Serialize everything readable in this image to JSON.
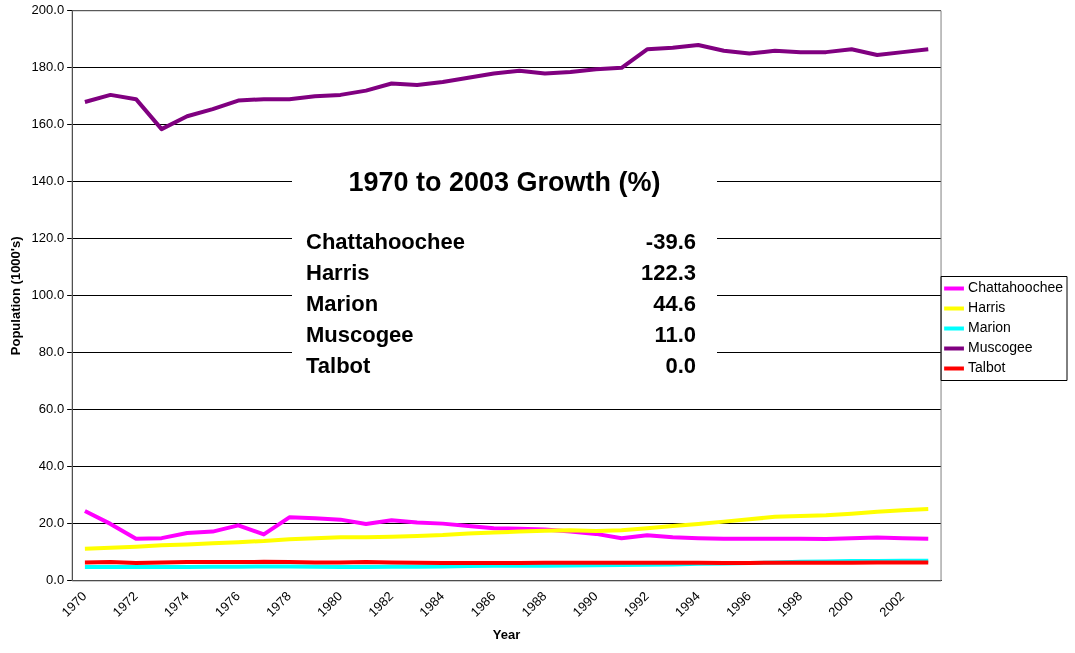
{
  "chart_data": {
    "type": "line",
    "xlabel": "Year",
    "ylabel": "Population (1000's)",
    "categories": [
      "1970",
      null,
      "1972",
      null,
      "1974",
      null,
      "1976",
      null,
      "1978",
      null,
      "1980",
      null,
      "1982",
      null,
      "1984",
      null,
      "1986",
      null,
      "1988",
      null,
      "1990",
      null,
      "1992",
      null,
      "1994",
      null,
      "1996",
      null,
      "1998",
      null,
      "2000",
      null,
      "2002",
      null
    ],
    "series": [
      {
        "name": "Chattahoochee",
        "color": "#ff00ff",
        "values": [
          24.5,
          20,
          14.8,
          15,
          16.8,
          17.3,
          19.5,
          16.3,
          22.3,
          22,
          21.5,
          20,
          21.3,
          20.5,
          20.1,
          19.3,
          18.5,
          18.3,
          18,
          17.3,
          16.5,
          15,
          16,
          15.3,
          15,
          14.8,
          14.8,
          14.8,
          14.8,
          14.7,
          15,
          15.2,
          15,
          14.8
        ]
      },
      {
        "name": "Harris",
        "color": "#ffff00",
        "values": [
          11.3,
          11.6,
          12,
          12.5,
          12.8,
          13.2,
          13.6,
          14,
          14.6,
          15,
          15.3,
          15.3,
          15.5,
          15.8,
          16.1,
          16.6,
          17,
          17.3,
          17.6,
          17.8,
          17.5,
          17.8,
          18.5,
          19.3,
          20,
          20.8,
          21.6,
          22.5,
          22.8,
          23,
          23.6,
          24.3,
          24.8,
          25.2
        ]
      },
      {
        "name": "Marion",
        "color": "#00ffff",
        "values": [
          4.9,
          4.9,
          4.9,
          4.9,
          4.9,
          5,
          5,
          5.1,
          5.1,
          5,
          4.9,
          4.9,
          5,
          5,
          5.1,
          5.2,
          5.3,
          5.3,
          5.3,
          5.4,
          5.5,
          5.6,
          5.7,
          5.8,
          6,
          6.1,
          6.3,
          6.5,
          6.7,
          6.8,
          7,
          7,
          7.1,
          7.1
        ]
      },
      {
        "name": "Muscogee",
        "color": "#800080",
        "values": [
          168,
          170.5,
          169,
          158.5,
          163,
          165.5,
          168.5,
          169,
          169,
          170,
          170.5,
          172,
          174.5,
          174,
          175,
          176.5,
          178,
          179,
          178,
          178.5,
          179.5,
          180,
          186.5,
          187,
          188,
          186,
          185,
          186,
          185.5,
          185.5,
          186.5,
          184.5,
          185.5,
          186.5
        ]
      },
      {
        "name": "Talbot",
        "color": "#ff0000",
        "values": [
          6.5,
          6.6,
          6.3,
          6.5,
          6.6,
          6.6,
          6.6,
          6.7,
          6.6,
          6.5,
          6.5,
          6.6,
          6.5,
          6.4,
          6.3,
          6.3,
          6.3,
          6.3,
          6.4,
          6.4,
          6.4,
          6.4,
          6.4,
          6.4,
          6.4,
          6.3,
          6.3,
          6.4,
          6.4,
          6.4,
          6.4,
          6.5,
          6.5,
          6.5
        ]
      }
    ],
    "ylim": [
      0,
      200
    ],
    "yticks": [
      {
        "value": 0,
        "label": "0.0"
      },
      {
        "value": 20,
        "label": "20.0"
      },
      {
        "value": 40,
        "label": "40.0"
      },
      {
        "value": 60,
        "label": "60.0"
      },
      {
        "value": 80,
        "label": "80.0"
      },
      {
        "value": 100,
        "label": "100.0"
      },
      {
        "value": 120,
        "label": "120.0"
      },
      {
        "value": 140,
        "label": "140.0"
      },
      {
        "value": 160,
        "label": "160.0"
      },
      {
        "value": 180,
        "label": "180.0"
      },
      {
        "value": 200,
        "label": "200.0"
      }
    ],
    "grid": "y",
    "legend": "right",
    "marker": "none",
    "line_style": "solid",
    "annotations": [
      "1970 to 2003 Growth (%)",
      "Chattahoochee",
      "-39.6",
      "Harris",
      "122.3",
      "Marion",
      "44.6",
      "Muscogee",
      "11.0",
      "Talbot",
      "0.0"
    ]
  }
}
